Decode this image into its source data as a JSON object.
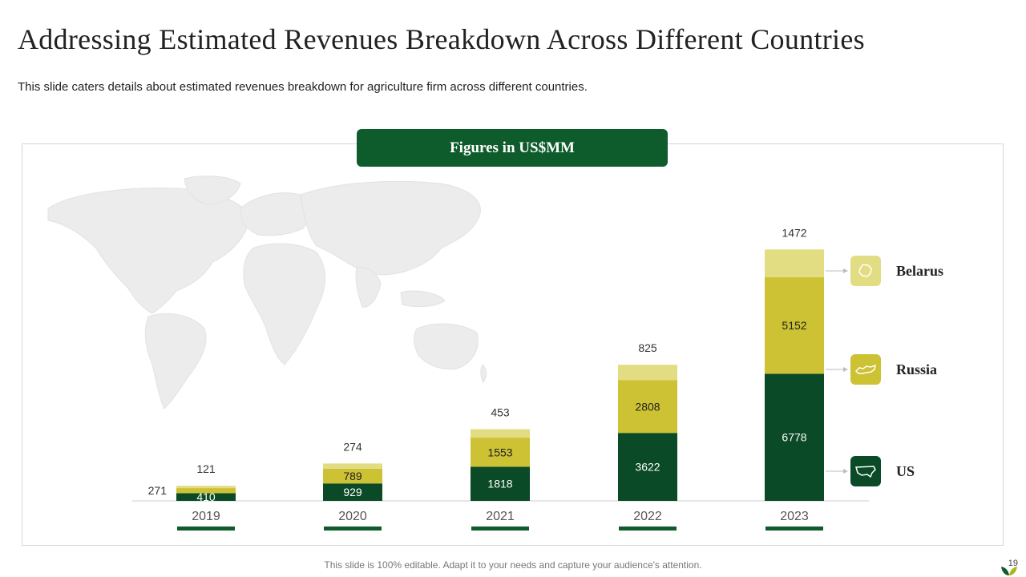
{
  "slide": {
    "title": "Addressing Estimated Revenues Breakdown Across Different Countries",
    "subtitle": "This slide caters details about estimated revenues breakdown for agriculture firm across different countries.",
    "banner": "Figures in US$MM",
    "footer": "This slide is 100% editable. Adapt it to your needs and capture your audience's attention.",
    "page_number": "19"
  },
  "legend": [
    {
      "label": "Belarus",
      "icon": "belarus-map-icon",
      "color": "#e2dc82"
    },
    {
      "label": "Russia",
      "icon": "russia-map-icon",
      "color": "#cdc233"
    },
    {
      "label": "US",
      "icon": "us-map-icon",
      "color": "#0b4a26"
    }
  ],
  "chart_data": {
    "type": "bar",
    "stacked": true,
    "title": "Figures in US$MM",
    "categories": [
      "2019",
      "2020",
      "2021",
      "2022",
      "2023"
    ],
    "series": [
      {
        "name": "US",
        "values": [
          410,
          929,
          1818,
          3622,
          6778
        ],
        "color": "#0b4a26",
        "label_color": "#ffffff"
      },
      {
        "name": "Russia",
        "values": [
          271,
          789,
          1553,
          2808,
          5152
        ],
        "color": "#cdc233",
        "label_color": "#222222"
      },
      {
        "name": "Belarus",
        "values": [
          121,
          274,
          453,
          825,
          1472
        ],
        "color": "#e2dc82",
        "label_color": "#333333"
      }
    ],
    "ylim": [
      0,
      13500
    ],
    "xlabel": "",
    "ylabel": "",
    "grid": false,
    "legend_position": "right"
  }
}
